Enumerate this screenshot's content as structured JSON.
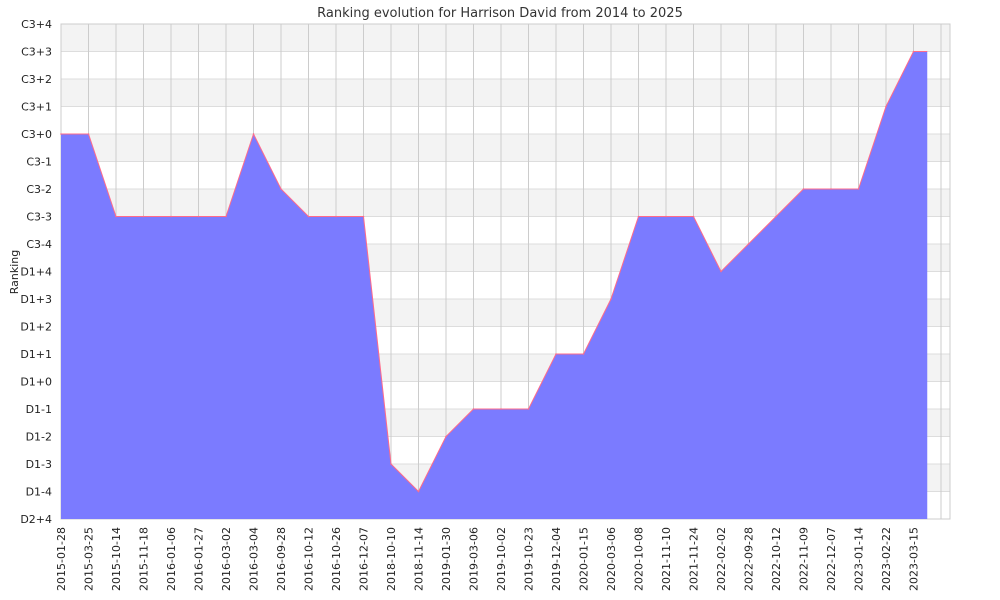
{
  "chart_data": {
    "type": "area",
    "title": "Ranking evolution for Harrison David from 2014 to 2025",
    "xlabel": "",
    "ylabel": "Ranking",
    "grid": true,
    "y_ticks": [
      "D2+4",
      "D1-4",
      "D1-3",
      "D1-2",
      "D1-1",
      "D1+0",
      "D1+1",
      "D1+2",
      "D1+3",
      "D1+4",
      "C3-4",
      "C3-3",
      "C3-2",
      "C3-1",
      "C3+0",
      "C3+1",
      "C3+2",
      "C3+3",
      "C3+4"
    ],
    "x_tick_labels": [
      "2015-01-28",
      "2015-03-25",
      "2015-10-14",
      "2015-11-18",
      "2016-01-06",
      "2016-01-27",
      "2016-03-02",
      "2016-03-04",
      "2016-09-28",
      "2016-10-12",
      "2016-10-26",
      "2016-12-07",
      "2018-10-10",
      "2018-11-14",
      "2019-01-30",
      "2019-03-06",
      "2019-10-02",
      "2019-10-23",
      "2019-12-04",
      "2020-01-15",
      "2020-03-06",
      "2020-10-08",
      "2021-11-10",
      "2021-11-24",
      "2022-02-02",
      "2022-09-28",
      "2022-10-12",
      "2022-11-09",
      "2022-12-07",
      "2023-01-14",
      "2023-02-22",
      "2023-03-15"
    ],
    "series": [
      {
        "values": [
          [
            "2015-01-28",
            "C3+0"
          ],
          [
            "2015-03-25",
            "C3+0"
          ],
          [
            "2015-10-14",
            "C3-3"
          ],
          [
            "2015-11-18",
            "C3-3"
          ],
          [
            "2016-01-06",
            "C3-3"
          ],
          [
            "2016-01-27",
            "C3-3"
          ],
          [
            "2016-03-02",
            "C3-3"
          ],
          [
            "2016-03-04",
            "C3+0"
          ],
          [
            "2016-09-28",
            "C3-2"
          ],
          [
            "2016-10-12",
            "C3-3"
          ],
          [
            "2016-10-26",
            "C3-3"
          ],
          [
            "2016-12-07",
            "C3-3"
          ],
          [
            "2018-10-10",
            "D1-3"
          ],
          [
            "2018-11-14",
            "D1-4"
          ],
          [
            "2019-01-30",
            "D1-2"
          ],
          [
            "2019-03-06",
            "D1-1"
          ],
          [
            "2019-10-02",
            "D1-1"
          ],
          [
            "2019-10-23",
            "D1-1"
          ],
          [
            "2019-12-04",
            "D1+1"
          ],
          [
            "2020-01-15",
            "D1+1"
          ],
          [
            "2020-03-06",
            "D1+3"
          ],
          [
            "2020-10-08",
            "C3-3"
          ],
          [
            "2021-11-10",
            "C3-3"
          ],
          [
            "2021-11-24",
            "C3-3"
          ],
          [
            "2022-02-02",
            "D1+4"
          ],
          [
            "2022-09-28",
            "C3-4"
          ],
          [
            "2022-10-12",
            "C3-3"
          ],
          [
            "2022-11-09",
            "C3-2"
          ],
          [
            "2022-12-07",
            "C3-2"
          ],
          [
            "2023-01-14",
            "C3-2"
          ],
          [
            "2023-02-22",
            "C3+1"
          ],
          [
            "2023-03-15",
            "C3+3"
          ]
        ]
      }
    ],
    "colors": {
      "fill": "#7b7bff",
      "line": "#ff6b8a",
      "band": "#f3f3f3",
      "grid": "#cccccc"
    }
  }
}
